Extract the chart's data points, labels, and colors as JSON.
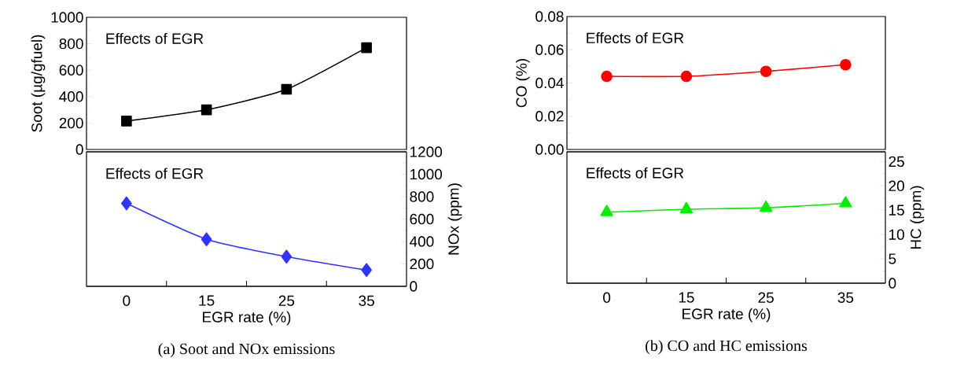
{
  "chart_data": [
    {
      "type": "line",
      "categories": [
        "0",
        "15",
        "25",
        "35"
      ],
      "ylabel": "Soot (µg/gfuel)",
      "ylim": [
        0,
        1000
      ],
      "yticks": [
        0,
        200,
        400,
        600,
        800,
        1000
      ],
      "tick_labels": "y",
      "marker": "square",
      "grid": false,
      "series": [
        {
          "color": "#000000",
          "values": [
            215,
            300,
            455,
            770
          ]
        }
      ],
      "annotations": [
        "Effects of EGR"
      ]
    },
    {
      "type": "line",
      "categories": [
        "0",
        "15",
        "25",
        "35"
      ],
      "xlabel": "EGR rate (%)",
      "y2label": "NOx (ppm)",
      "y2lim": [
        0,
        1200
      ],
      "y2ticks": [
        0,
        200,
        400,
        600,
        800,
        1000,
        1200
      ],
      "marker": "diamond",
      "grid": false,
      "series": [
        {
          "color": "#3333ff",
          "axis": "y2",
          "values": [
            740,
            420,
            265,
            145
          ]
        }
      ],
      "annotations": [
        "Effects of EGR",
        "(a) Soot and NOx emissions"
      ]
    },
    {
      "type": "line",
      "categories": [
        "0",
        "15",
        "25",
        "35"
      ],
      "ylabel": "CO (%)",
      "ylim": [
        0,
        0.08
      ],
      "yticks": [
        {
          "value": 0,
          "label": "0.00"
        },
        {
          "value": 0.02,
          "label": "0.02"
        },
        {
          "value": 0.04,
          "label": "0.04"
        },
        {
          "value": 0.06,
          "label": "0.06"
        },
        {
          "value": 0.08,
          "label": "0.08"
        }
      ],
      "tick_labels": "y",
      "marker": "circle",
      "grid": false,
      "series": [
        {
          "color": "#ff0000",
          "values": [
            0.044,
            0.044,
            0.047,
            0.051
          ]
        }
      ],
      "annotations": [
        "Effects of EGR"
      ]
    },
    {
      "type": "line",
      "categories": [
        "0",
        "15",
        "25",
        "35"
      ],
      "xlabel": "EGR rate (%)",
      "y2label": "HC (ppm)",
      "y2lim": [
        0,
        27
      ],
      "y2ticks": [
        0,
        5,
        10,
        15,
        20,
        25
      ],
      "marker": "triangle",
      "grid": false,
      "series": [
        {
          "color": "#00ee00",
          "axis": "y2",
          "values": [
            14.6,
            15.2,
            15.5,
            16.4
          ]
        }
      ],
      "annotations": [
        "Effects of EGR",
        "(b) CO and HC emissions"
      ]
    }
  ]
}
